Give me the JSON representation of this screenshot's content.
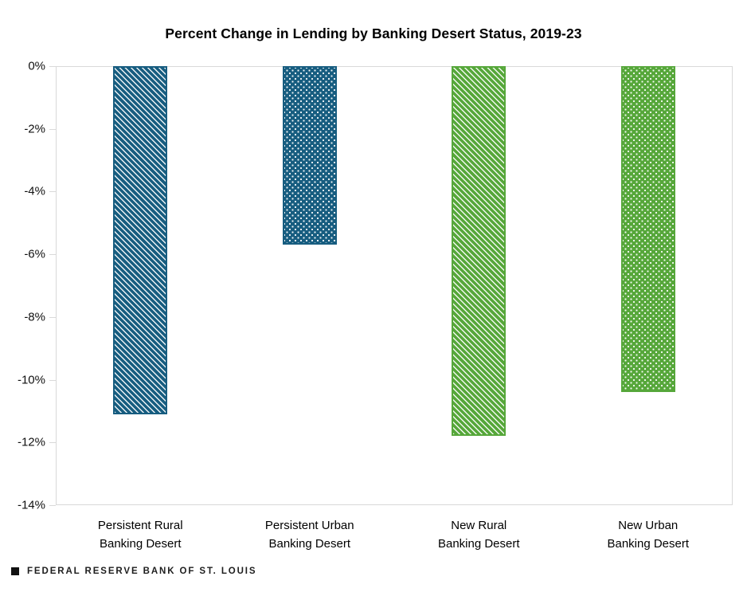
{
  "title": "Percent Change in Lending by Banking Desert Status, 2019-23",
  "footer": {
    "brand": "FEDERAL RESERVE BANK OF ST. LOUIS"
  },
  "colors": {
    "teal": "#175d80",
    "green": "#56a73a",
    "axis_line": "#d9d9d9"
  },
  "chart_data": {
    "type": "bar",
    "title": "Percent Change in Lending by Banking Desert Status, 2019-23",
    "categories": [
      "Persistent Rural\nBanking Desert",
      "Persistent Urban\nBanking Desert",
      "New Rural\nBanking Desert",
      "New Urban\nBanking Desert"
    ],
    "values": [
      -11.1,
      -5.7,
      -11.8,
      -10.4
    ],
    "unit": "%",
    "ylabel": "",
    "xlabel": "",
    "ylim": [
      -14,
      0
    ],
    "ytick_step": 2,
    "ytick_labels": [
      "0%",
      "-2%",
      "-4%",
      "-6%",
      "-8%",
      "-10%",
      "-12%",
      "-14%"
    ],
    "grid": false,
    "legend": false,
    "bar_styles": [
      {
        "color": "#175d80",
        "pattern": "diagonal"
      },
      {
        "color": "#175d80",
        "pattern": "dots"
      },
      {
        "color": "#56a73a",
        "pattern": "diagonal"
      },
      {
        "color": "#56a73a",
        "pattern": "dots"
      }
    ]
  }
}
